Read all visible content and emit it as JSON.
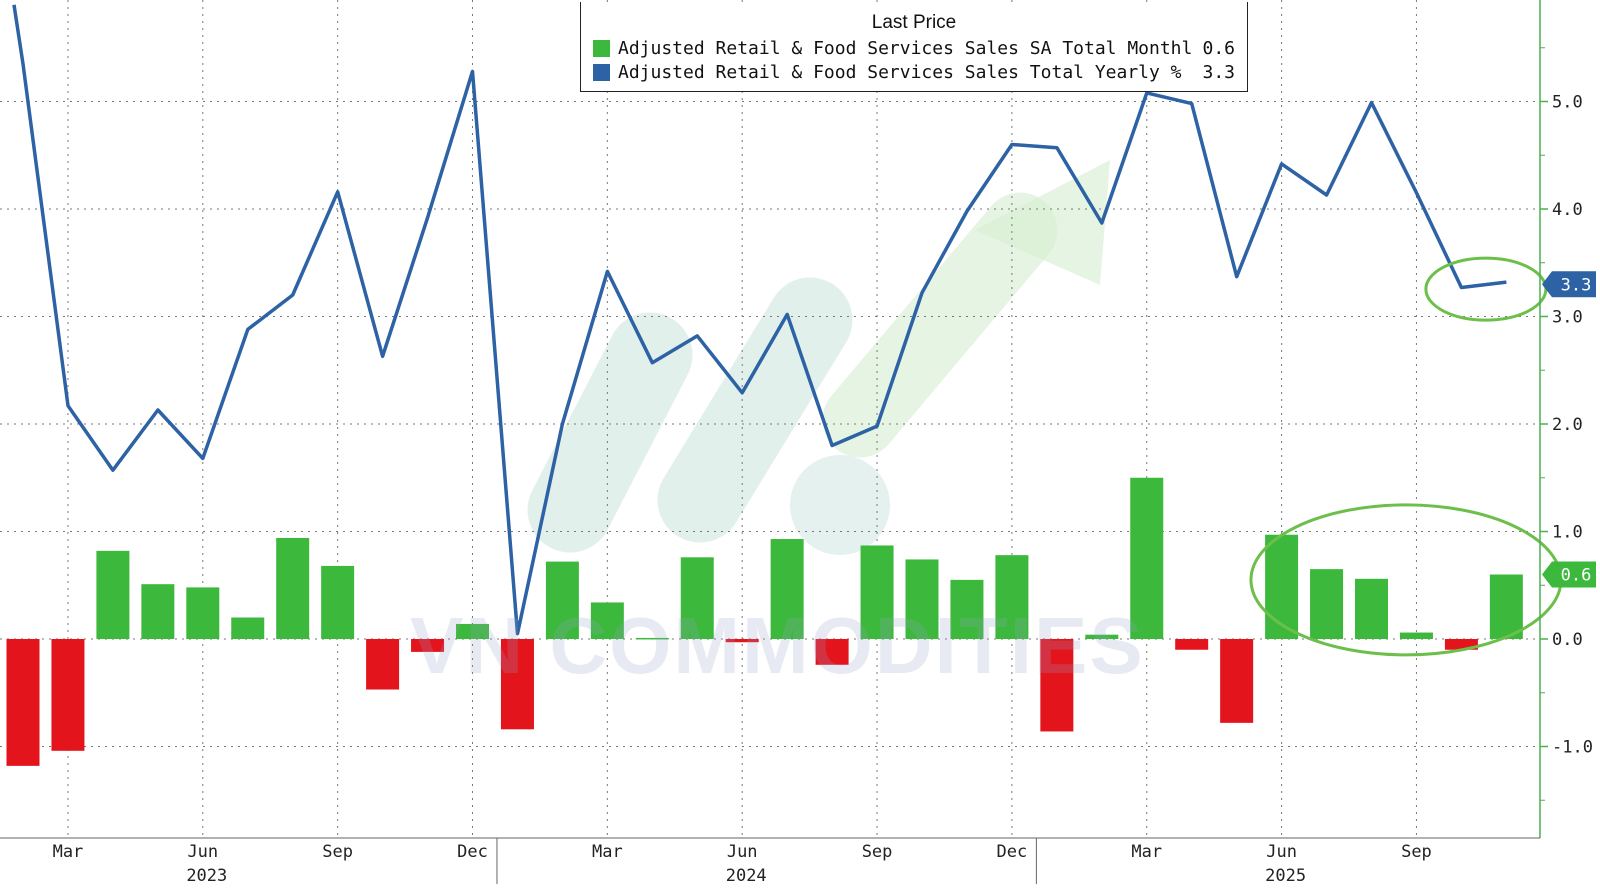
{
  "chart_data": {
    "type": "bar+line",
    "legend": {
      "title": "Last Price",
      "entries": [
        {
          "name": "Adjusted Retail & Food Services Sales SA Total Monthly % Change",
          "value": "0.6",
          "color": "#3cb93c"
        },
        {
          "name": "Adjusted Retail & Food Services Sales Total Yearly % Change SA",
          "value": "3.3",
          "color": "#2d62a5"
        }
      ]
    },
    "months": [
      "2023-02",
      "2023-03",
      "2023-04",
      "2023-05",
      "2023-06",
      "2023-07",
      "2023-08",
      "2023-09",
      "2023-10",
      "2023-11",
      "2023-12",
      "2024-01",
      "2024-02",
      "2024-03",
      "2024-04",
      "2024-05",
      "2024-06",
      "2024-07",
      "2024-08",
      "2024-09",
      "2024-10",
      "2024-11",
      "2024-12",
      "2025-01",
      "2025-02",
      "2025-03",
      "2025-04",
      "2025-05",
      "2025-06",
      "2025-07",
      "2025-08",
      "2025-09",
      "2025-10",
      "2025-11"
    ],
    "series": [
      {
        "name": "Adjusted Retail & Food Services Sales SA Total Monthly % Change",
        "kind": "bar",
        "values": [
          -1.18,
          -1.04,
          0.82,
          0.51,
          0.48,
          0.2,
          0.94,
          0.68,
          -0.47,
          -0.12,
          0.14,
          -0.84,
          0.72,
          0.34,
          0.01,
          0.76,
          -0.03,
          0.93,
          -0.24,
          0.87,
          0.74,
          0.55,
          0.78,
          -0.86,
          0.04,
          1.5,
          -0.1,
          -0.78,
          0.97,
          0.65,
          0.56,
          0.06,
          -0.1,
          0.6
        ]
      },
      {
        "name": "Adjusted Retail & Food Services Sales Total Yearly % Change SA",
        "kind": "line",
        "values": [
          5.35,
          2.17,
          1.57,
          2.13,
          1.68,
          2.88,
          3.2,
          4.16,
          2.63,
          3.92,
          5.28,
          0.05,
          2.0,
          3.42,
          2.57,
          2.82,
          2.29,
          3.02,
          1.8,
          1.98,
          3.22,
          3.98,
          4.6,
          4.57,
          3.87,
          5.08,
          4.98,
          3.37,
          4.42,
          4.13,
          4.99,
          4.15,
          3.27,
          3.32
        ],
        "start_value": 5.9
      }
    ],
    "y_axis": {
      "side": "right",
      "ticks": [
        "-1.0",
        "0.0",
        "1.0",
        "2.0",
        "3.0",
        "4.0",
        "5.0"
      ],
      "range": [
        -1.55,
        5.95
      ]
    },
    "x_axis": {
      "month_labels": [
        {
          "label": "Mar",
          "month": "2023-03"
        },
        {
          "label": "Jun",
          "month": "2023-06"
        },
        {
          "label": "Sep",
          "month": "2023-09"
        },
        {
          "label": "Dec",
          "month": "2023-12"
        },
        {
          "label": "Mar",
          "month": "2024-03"
        },
        {
          "label": "Jun",
          "month": "2024-06"
        },
        {
          "label": "Sep",
          "month": "2024-09"
        },
        {
          "label": "Dec",
          "month": "2024-12"
        },
        {
          "label": "Mar",
          "month": "2025-03"
        },
        {
          "label": "Jun",
          "month": "2025-06"
        },
        {
          "label": "Sep",
          "month": "2025-09"
        }
      ],
      "year_labels": [
        {
          "label": "2023",
          "month": "2023-06"
        },
        {
          "label": "2024",
          "month": "2024-06"
        },
        {
          "label": "2025",
          "month": "2025-06"
        }
      ]
    },
    "last_value_tags": [
      {
        "text": "3.3",
        "value": 3.3,
        "color": "#2d62a5"
      },
      {
        "text": "0.6",
        "value": 0.6,
        "color": "#3cb93c"
      }
    ],
    "colors": {
      "positive_bar": "#3cb93c",
      "negative_bar": "#e3141b",
      "line": "#2d62a5",
      "axis": "#4caf50",
      "highlight": "#6cbf4a"
    },
    "grid": "dotted",
    "watermark": "VN COMMODITIES"
  }
}
